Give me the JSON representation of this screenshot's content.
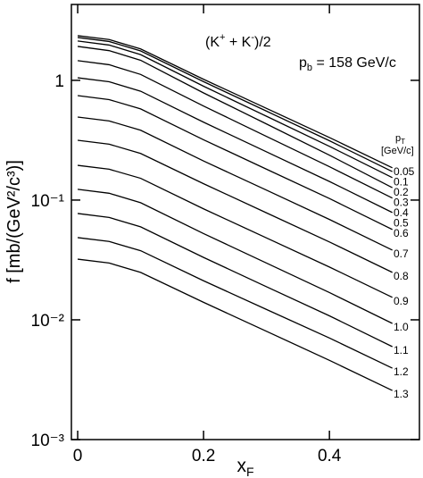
{
  "chart_data": {
    "type": "line",
    "y_label": "f [mb/(GeV²/c³)]",
    "x_label": {
      "main": "x",
      "sub": "F"
    },
    "annotations": {
      "reaction": [
        "(K",
        "+",
        " + K",
        "-",
        ")/2"
      ],
      "beam": {
        "main": "p",
        "sub": "b",
        "rest": " = 158 GeV/c"
      }
    },
    "legend_title": {
      "main": "p",
      "sub": "T",
      "unit": "[GeV/c]"
    },
    "log_y": true,
    "xlim": [
      -0.01,
      0.543
    ],
    "ylim": [
      0.001,
      4.3
    ],
    "xticks": [
      0,
      0.2,
      0.4
    ],
    "yticks": [
      {
        "value": 0.001,
        "label": "10⁻³"
      },
      {
        "value": 0.01,
        "label": "10⁻²"
      },
      {
        "value": 0.1,
        "label": "10⁻¹"
      },
      1
    ],
    "x": [
      0,
      0.05,
      0.1,
      0.2,
      0.3,
      0.4,
      0.5
    ],
    "color": "#000000",
    "series": [
      {
        "name": "0.05",
        "values": [
          2.36,
          2.19,
          1.83,
          1.02,
          0.583,
          0.333,
          0.186
        ]
      },
      {
        "name": "0.1",
        "values": [
          2.28,
          2.11,
          1.76,
          0.975,
          0.553,
          0.313,
          0.173
        ]
      },
      {
        "name": "0.2",
        "values": [
          2.13,
          1.97,
          1.64,
          0.893,
          0.501,
          0.281,
          0.154
        ]
      },
      {
        "name": "0.3",
        "values": [
          1.92,
          1.77,
          1.47,
          0.785,
          0.432,
          0.237,
          0.127
        ]
      },
      {
        "name": "0.4",
        "values": [
          1.46,
          1.35,
          1.12,
          0.61,
          0.34,
          0.19,
          0.104
        ]
      },
      {
        "name": "0.5",
        "values": [
          1.05,
          0.973,
          0.811,
          0.447,
          0.253,
          0.143,
          0.0787
        ]
      },
      {
        "name": "0.6",
        "values": [
          0.746,
          0.69,
          0.577,
          0.319,
          0.181,
          0.103,
          0.0568
        ]
      },
      {
        "name": "0.7",
        "values": [
          0.494,
          0.458,
          0.383,
          0.212,
          0.121,
          0.0689,
          0.0382
        ]
      },
      {
        "name": "0.8",
        "values": [
          0.316,
          0.293,
          0.245,
          0.137,
          0.0782,
          0.0447,
          0.0249
        ]
      },
      {
        "name": "0.9",
        "values": [
          0.195,
          0.181,
          0.152,
          0.0845,
          0.0483,
          0.0276,
          0.0154
        ]
      },
      {
        "name": "1.0",
        "values": [
          0.123,
          0.114,
          0.0951,
          0.0525,
          0.0298,
          0.0169,
          0.00933
        ]
      },
      {
        "name": "1.1",
        "values": [
          0.0773,
          0.0716,
          0.0598,
          0.0332,
          0.0189,
          0.0108,
          0.00597
        ]
      },
      {
        "name": "1.2",
        "values": [
          0.0486,
          0.0451,
          0.0378,
          0.0212,
          0.0122,
          0.00705,
          0.00395
        ]
      },
      {
        "name": "1.3",
        "values": [
          0.0321,
          0.0298,
          0.0249,
          0.014,
          0.00802,
          0.00459,
          0.00257
        ]
      }
    ]
  }
}
